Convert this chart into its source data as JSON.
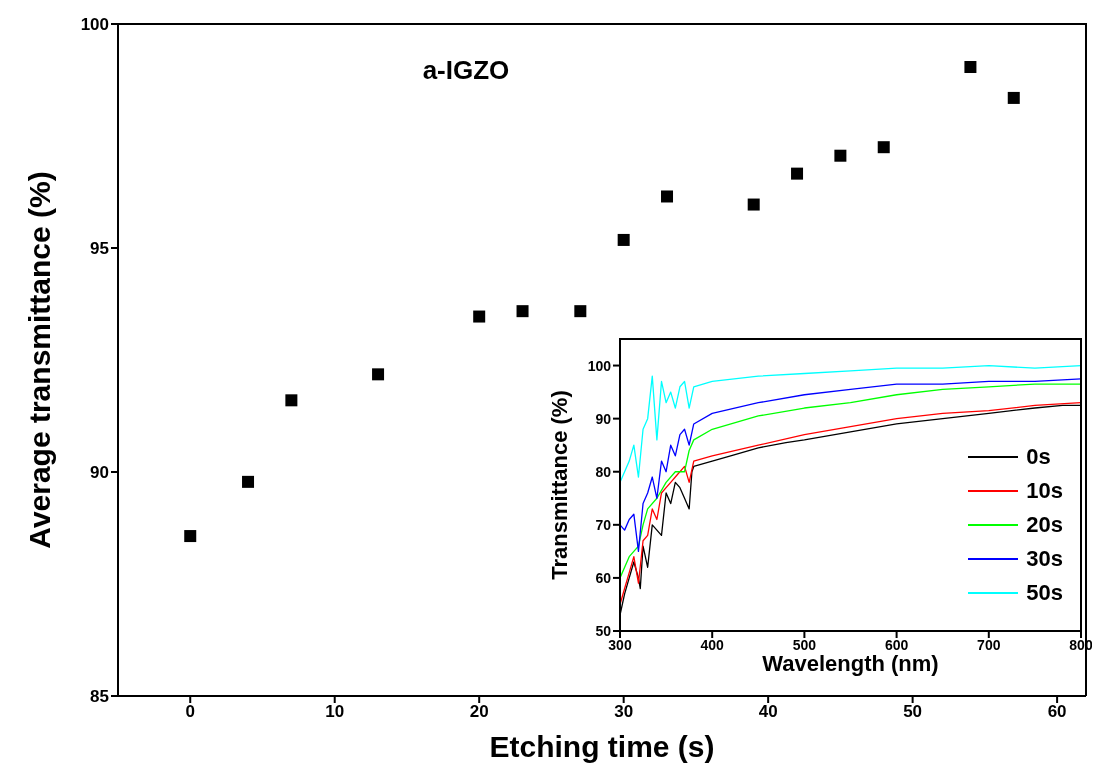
{
  "chart_data": [
    {
      "type": "scatter",
      "title": "a-IGZO",
      "xlabel": "Etching time (s)",
      "ylabel": "Average transmittance (%)",
      "marker": "square",
      "grid": false,
      "legend": false,
      "xlim": [
        -5,
        62
      ],
      "xticks": [
        0,
        10,
        20,
        30,
        40,
        50,
        60
      ],
      "ylim": [
        85,
        100
      ],
      "yticks": [
        85,
        90,
        95,
        100
      ],
      "series": [
        {
          "color": "#000000",
          "x": [
            0,
            4,
            7,
            13,
            20,
            23,
            27,
            30,
            33,
            39,
            42,
            45,
            48,
            54,
            57
          ],
          "values": [
            88.57,
            89.78,
            91.6,
            92.18,
            93.47,
            93.59,
            93.59,
            95.18,
            96.15,
            95.97,
            96.66,
            97.06,
            97.25,
            99.04,
            98.35
          ]
        }
      ]
    },
    {
      "type": "line",
      "xlabel": "Wavelength (nm)",
      "ylabel": "Transmittance (%)",
      "grid": false,
      "legend": "right",
      "marker": "none",
      "xlim": [
        300,
        800
      ],
      "xticks": [
        300,
        400,
        500,
        600,
        700,
        800
      ],
      "ylim": [
        50,
        105
      ],
      "yticks": [
        50,
        60,
        70,
        80,
        90,
        100
      ],
      "series": [
        {
          "name": "0s",
          "color": "#000000",
          "x": [
            300,
            305,
            310,
            315,
            320,
            322,
            325,
            330,
            335,
            340,
            345,
            350,
            355,
            360,
            365,
            370,
            375,
            378,
            380,
            400,
            420,
            450,
            480,
            500,
            550,
            600,
            650,
            700,
            750,
            780,
            800
          ],
          "values": [
            53,
            57,
            60,
            63,
            60,
            58,
            66,
            62,
            70,
            69,
            68,
            76,
            74,
            78,
            77,
            75,
            73,
            80,
            81,
            82,
            83,
            84.5,
            85.5,
            86,
            87.5,
            89,
            90,
            91,
            92,
            92.5,
            92.5
          ]
        },
        {
          "name": "10s",
          "color": "#ff0000",
          "x": [
            300,
            305,
            310,
            315,
            320,
            325,
            330,
            335,
            340,
            345,
            350,
            355,
            360,
            370,
            375,
            380,
            400,
            450,
            500,
            550,
            600,
            650,
            700,
            750,
            800
          ],
          "values": [
            55,
            58,
            61,
            64,
            59,
            67,
            68,
            73,
            71,
            76,
            77,
            78,
            79,
            81,
            78,
            82,
            83,
            85,
            87,
            88.5,
            90,
            91,
            91.5,
            92.5,
            93
          ]
        },
        {
          "name": "20s",
          "color": "#00ff00",
          "x": [
            300,
            310,
            320,
            325,
            330,
            340,
            350,
            360,
            370,
            375,
            380,
            400,
            450,
            500,
            550,
            600,
            650,
            700,
            750,
            800
          ],
          "values": [
            60,
            64,
            66,
            70,
            73,
            75,
            78,
            80,
            80,
            84,
            86,
            88,
            90.5,
            92,
            93,
            94.5,
            95.5,
            96,
            96.5,
            96.5
          ]
        },
        {
          "name": "30s",
          "color": "#0000ff",
          "x": [
            300,
            305,
            310,
            315,
            320,
            325,
            330,
            335,
            340,
            345,
            350,
            355,
            360,
            365,
            370,
            375,
            380,
            400,
            450,
            500,
            550,
            600,
            650,
            700,
            750,
            800
          ],
          "values": [
            70,
            69,
            71,
            72,
            65,
            74,
            76,
            79,
            75,
            82,
            80,
            85,
            83,
            87,
            88,
            85,
            89,
            91,
            93,
            94.5,
            95.5,
            96.5,
            96.5,
            97,
            97,
            97.5
          ]
        },
        {
          "name": "50s",
          "color": "#00ffff",
          "x": [
            300,
            305,
            310,
            315,
            320,
            325,
            330,
            335,
            340,
            345,
            350,
            355,
            360,
            365,
            370,
            375,
            380,
            400,
            450,
            500,
            550,
            600,
            650,
            700,
            750,
            800
          ],
          "values": [
            78,
            80,
            82,
            85,
            79,
            88,
            90,
            98,
            86,
            97,
            93,
            95,
            92,
            96,
            97,
            92,
            96,
            97,
            98,
            98.5,
            99,
            99.5,
            99.5,
            100,
            99.5,
            100
          ]
        }
      ]
    }
  ]
}
